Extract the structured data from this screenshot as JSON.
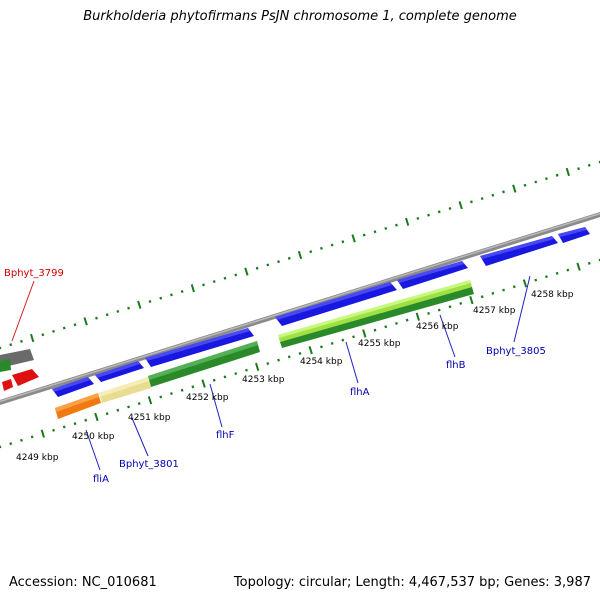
{
  "title": "Burkholderia phytofirmans PsJN chromosome 1, complete genome",
  "footer": {
    "accession": "Accession: NC_010681",
    "summary": "Topology: circular; Length: 4,467,537 bp; Genes: 3,987"
  },
  "colors": {
    "backbone": "#8a8a8a",
    "tick": "#1a7a1a",
    "blue_gene": "#1818e0",
    "red_gene": "#e01010",
    "gray_gene": "#707070",
    "label_blue": "#0000b0",
    "label_red": "#d00000"
  },
  "kbp_labels": [
    {
      "kbp": 4249,
      "text": "4249 kbp"
    },
    {
      "kbp": 4250,
      "text": "4250 kbp"
    },
    {
      "kbp": 4251,
      "text": "4251 kbp"
    },
    {
      "kbp": 4252,
      "text": "4252 kbp"
    },
    {
      "kbp": 4253,
      "text": "4253 kbp"
    },
    {
      "kbp": 4254,
      "text": "4254 kbp"
    },
    {
      "kbp": 4255,
      "text": "4255 kbp"
    },
    {
      "kbp": 4256,
      "text": "4256 kbp"
    },
    {
      "kbp": 4257,
      "text": "4257 kbp"
    },
    {
      "kbp": 4258,
      "text": "4258 kbp"
    }
  ],
  "gene_labels": [
    {
      "name": "Bphyt_3799",
      "color": "red"
    },
    {
      "name": "fliA",
      "color": "blue"
    },
    {
      "name": "Bphyt_3801",
      "color": "blue"
    },
    {
      "name": "flhF",
      "color": "blue"
    },
    {
      "name": "flhA",
      "color": "blue"
    },
    {
      "name": "flhB",
      "color": "blue"
    },
    {
      "name": "Bphyt_3805",
      "color": "blue"
    }
  ]
}
